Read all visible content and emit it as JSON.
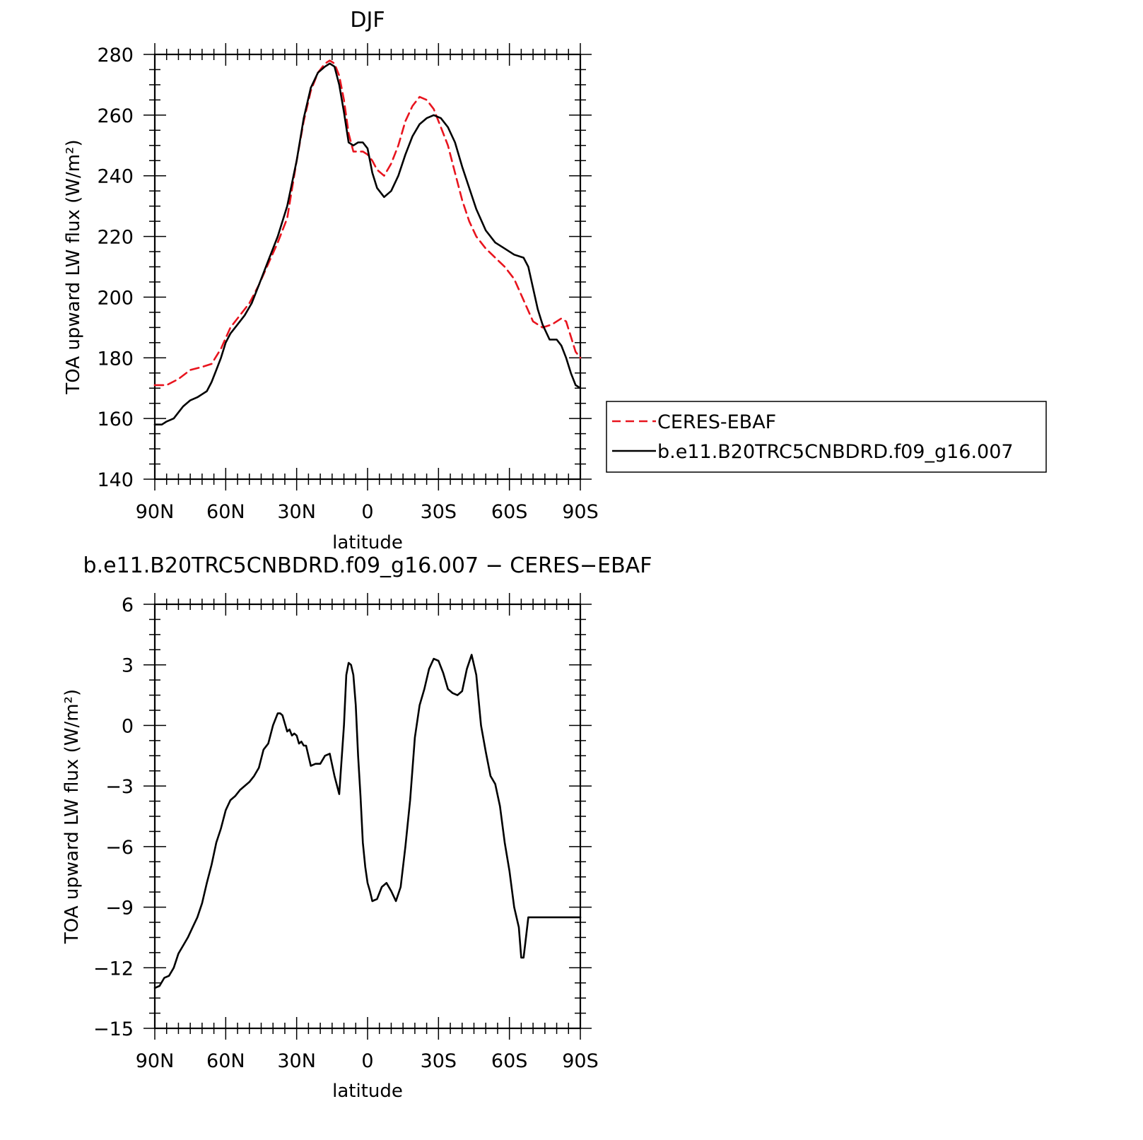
{
  "chart_data": [
    {
      "type": "line",
      "title": "DJF",
      "xlabel": "latitude",
      "ylabel": "TOA upward LW flux (W/m²)",
      "xlim": [
        90,
        -90
      ],
      "ylim": [
        140,
        280
      ],
      "xticks": [
        90,
        60,
        30,
        0,
        -30,
        -60,
        -90
      ],
      "xtick_labels": [
        "90N",
        "60N",
        "30N",
        "0",
        "30S",
        "60S",
        "90S"
      ],
      "yticks": [
        140,
        160,
        180,
        200,
        220,
        240,
        260,
        280
      ],
      "ytick_labels": [
        "140",
        "160",
        "180",
        "200",
        "220",
        "240",
        "260",
        "280"
      ],
      "legend_position": "right",
      "series": [
        {
          "name": "CERES-EBAF",
          "color": "#e8141e",
          "style": "dashed",
          "x": [
            90,
            85,
            80,
            75,
            70,
            66,
            62,
            58,
            54,
            50,
            46,
            42,
            38,
            34,
            30,
            27,
            24,
            21,
            18,
            16,
            14,
            12,
            10,
            8,
            6,
            4,
            2,
            0,
            -2,
            -4,
            -7,
            -10,
            -13,
            -16,
            -19,
            -22,
            -25,
            -28,
            -31,
            -34,
            -37,
            -40,
            -43,
            -46,
            -50,
            -54,
            -58,
            -62,
            -66,
            -70,
            -74,
            -78,
            -82,
            -84,
            -86,
            -88,
            -90
          ],
          "y": [
            171,
            171,
            173,
            176,
            177,
            178,
            183,
            190,
            194,
            198,
            204,
            211,
            218,
            226,
            245,
            258,
            268,
            274,
            277,
            278,
            277,
            273,
            265,
            254,
            248,
            248,
            248,
            247,
            245,
            242,
            240,
            244,
            250,
            258,
            263,
            266,
            265,
            262,
            256,
            250,
            241,
            232,
            225,
            220,
            216,
            213,
            210,
            206,
            199,
            192,
            190,
            191,
            193,
            192,
            187,
            182,
            180
          ]
        },
        {
          "name": "b.e11.B20TRC5CNBDRD.f09_g16.007",
          "color": "#000000",
          "style": "solid",
          "x": [
            90,
            87,
            85,
            82,
            80,
            78,
            75,
            72,
            70,
            68,
            66,
            64,
            62,
            60,
            58,
            55,
            52,
            49,
            46,
            42,
            38,
            34,
            30,
            27,
            24,
            21,
            18,
            16,
            14,
            12,
            10,
            8,
            6,
            4,
            2,
            0,
            -2,
            -4,
            -7,
            -10,
            -13,
            -16,
            -19,
            -22,
            -25,
            -28,
            -31,
            -34,
            -37,
            -40,
            -43,
            -46,
            -50,
            -54,
            -58,
            -62,
            -66,
            -68,
            -70,
            -72,
            -74,
            -77,
            -80,
            -82,
            -84,
            -86,
            -88,
            -90
          ],
          "y": [
            158,
            158,
            159,
            160,
            162,
            164,
            166,
            167,
            168,
            169,
            172,
            176,
            180,
            185,
            188,
            191,
            194,
            198,
            204,
            212,
            220,
            230,
            245,
            259,
            269,
            274,
            276,
            277,
            276,
            270,
            261,
            251,
            250,
            251,
            251,
            249,
            241,
            236,
            233,
            235,
            240,
            247,
            253,
            257,
            259,
            260,
            259,
            256,
            251,
            243,
            236,
            229,
            222,
            218,
            216,
            214,
            213,
            210,
            203,
            196,
            191,
            186,
            186,
            184,
            180,
            175,
            171,
            170
          ]
        }
      ]
    },
    {
      "type": "line",
      "title": "b.e11.B20TRC5CNBDRD.f09_g16.007 − CERES−EBAF",
      "xlabel": "latitude",
      "ylabel": "TOA upward LW flux (W/m²)",
      "xlim": [
        90,
        -90
      ],
      "ylim": [
        -15,
        6
      ],
      "xticks": [
        90,
        60,
        30,
        0,
        -30,
        -60,
        -90
      ],
      "xtick_labels": [
        "90N",
        "60N",
        "30N",
        "0",
        "30S",
        "60S",
        "90S"
      ],
      "yticks": [
        6,
        3,
        0,
        -3,
        -6,
        -9,
        -12,
        -15
      ],
      "ytick_labels": [
        "6",
        "3",
        "0",
        "−3",
        "−6",
        "−9",
        "−12",
        "−15"
      ],
      "series": [
        {
          "color": "#000000",
          "style": "solid",
          "x": [
            90,
            88,
            86,
            84,
            82,
            80,
            78,
            76,
            74,
            72,
            70,
            68,
            66,
            64,
            62,
            60,
            58,
            56,
            54,
            52,
            50,
            48,
            46,
            44,
            42,
            40,
            38,
            37,
            36,
            34,
            33,
            32,
            31,
            30,
            29,
            28,
            27,
            26,
            24,
            22,
            20,
            18,
            16,
            14,
            12,
            10,
            9,
            8,
            7,
            6,
            5,
            4,
            3,
            2,
            1,
            0,
            -1,
            -2,
            -4,
            -6,
            -8,
            -10,
            -12,
            -14,
            -16,
            -18,
            -20,
            -22,
            -24,
            -26,
            -28,
            -30,
            -32,
            -34,
            -36,
            -38,
            -40,
            -42,
            -44,
            -46,
            -48,
            -50,
            -52,
            -54,
            -56,
            -58,
            -60,
            -62,
            -64,
            -65,
            -66,
            -67,
            -68,
            -70,
            -72,
            -74,
            -75,
            -76,
            -77,
            -78,
            -80,
            -82,
            -84,
            -85,
            -86,
            -87,
            -88,
            -89,
            -90
          ],
          "y": [
            -13,
            -12.9,
            -12.5,
            -12.4,
            -12,
            -11.3,
            -10.9,
            -10.5,
            -10,
            -9.5,
            -8.8,
            -7.8,
            -6.9,
            -5.8,
            -5.1,
            -4.2,
            -3.7,
            -3.5,
            -3.2,
            -3.0,
            -2.8,
            -2.5,
            -2.1,
            -1.2,
            -0.9,
            0.0,
            0.6,
            0.6,
            0.5,
            -0.3,
            -0.2,
            -0.5,
            -0.4,
            -0.5,
            -0.9,
            -0.8,
            -1.0,
            -1.0,
            -2.0,
            -1.9,
            -1.9,
            -1.5,
            -1.4,
            -2.5,
            -3.4,
            0.0,
            2.5,
            3.1,
            3.0,
            2.5,
            1.0,
            -1.5,
            -3.5,
            -5.8,
            -7.0,
            -7.8,
            -8.2,
            -8.7,
            -8.6,
            -8.0,
            -7.8,
            -8.2,
            -8.7,
            -8.0,
            -6.0,
            -3.7,
            -0.6,
            1.0,
            1.8,
            2.8,
            3.3,
            3.2,
            2.6,
            1.8,
            1.6,
            1.5,
            1.7,
            2.8,
            3.5,
            2.5,
            0.0,
            -1.3,
            -2.5,
            -2.9,
            -4.0,
            -5.8,
            -7.2,
            -9.0,
            -10.0,
            -11.5,
            -11.5,
            -10.5,
            -9.5,
            -9.5,
            -9.5,
            -9.5,
            -9.5,
            -9.5,
            -9.5,
            -9.5,
            -9.5,
            -9.5,
            -9.5,
            -9.5,
            -9.5,
            -9.5,
            -9.5,
            -9.5,
            -9.5
          ]
        }
      ]
    }
  ]
}
